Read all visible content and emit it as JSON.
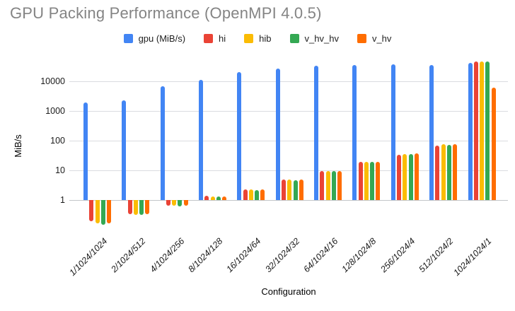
{
  "title": "GPU Packing Performance (OpenMPI 4.0.5)",
  "chart_data": {
    "type": "bar",
    "title": "GPU Packing Performance (OpenMPI 4.0.5)",
    "xlabel": "Configuration",
    "ylabel": "MiB/s",
    "y_scale": "log",
    "y_ticks": [
      1,
      10,
      100,
      1000,
      10000
    ],
    "ylim": [
      0.13,
      60000
    ],
    "grid": "horizontal",
    "legend_position": "top",
    "categories": [
      "1/1024/1024",
      "2/1024/512",
      "4/1024/256",
      "8/1024/128",
      "16/1024/64",
      "32/1024/32",
      "64/1024/16",
      "128/1024/8",
      "256/1024/4",
      "512/1024/2",
      "1024/1024/1"
    ],
    "series": [
      {
        "name": "gpu (MiB/s)",
        "color": "#4285F4",
        "values": [
          1900,
          2300,
          7000,
          11000,
          20000,
          27000,
          33000,
          35000,
          37000,
          36000,
          42000
        ]
      },
      {
        "name": "hi",
        "color": "#EA4335",
        "values": [
          0.19,
          0.33,
          0.66,
          1.4,
          2.3,
          4.9,
          9.7,
          19,
          33,
          68,
          46000
        ]
      },
      {
        "name": "hib",
        "color": "#FBBC04",
        "values": [
          0.16,
          0.32,
          0.64,
          1.35,
          2.25,
          4.8,
          9.5,
          19,
          36,
          78,
          46000
        ]
      },
      {
        "name": "v_hv_hv",
        "color": "#34A853",
        "values": [
          0.15,
          0.31,
          0.62,
          1.3,
          2.2,
          4.7,
          9.4,
          19,
          36,
          72,
          47000
        ]
      },
      {
        "name": "v_hv",
        "color": "#FF6D00",
        "values": [
          0.16,
          0.33,
          0.64,
          1.35,
          2.3,
          4.9,
          9.6,
          19,
          37,
          75,
          6000
        ]
      }
    ]
  },
  "colors": {
    "title_text": "#848484",
    "gridline": "#dadce0",
    "axis_text": "#1a1a1a",
    "background": "#ffffff"
  }
}
